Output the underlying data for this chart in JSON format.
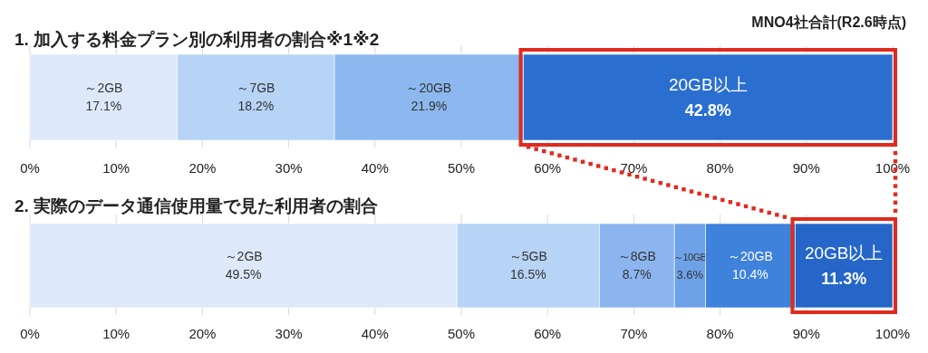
{
  "chart_data": [
    {
      "type": "bar",
      "orientation": "horizontal",
      "stacked": true,
      "title": "1. 加入する料金プラン別の利用者の割合※1※2",
      "annotations": [
        "MNO4社合計(R2.6時点)"
      ],
      "categories": [
        null
      ],
      "xlim": [
        0,
        100
      ],
      "xticks": [
        {
          "value": 0,
          "label": "0%"
        },
        {
          "value": 10,
          "label": "10%"
        },
        {
          "value": 20,
          "label": "20%"
        },
        {
          "value": 30,
          "label": "30%"
        },
        {
          "value": 40,
          "label": "40%"
        },
        {
          "value": 50,
          "label": "50%"
        },
        {
          "value": 60,
          "label": "60%"
        },
        {
          "value": 70,
          "label": "70%"
        },
        {
          "value": 80,
          "label": "80%"
        },
        {
          "value": 90,
          "label": "90%"
        },
        {
          "value": 100,
          "label": "100%"
        }
      ],
      "grid": "x",
      "series": [
        {
          "name": "～2GB",
          "color": "#dde9fb",
          "values": [
            17.1
          ],
          "value_labels": [
            "17.1%"
          ]
        },
        {
          "name": "～7GB",
          "color": "#b7d3f6",
          "values": [
            18.2
          ],
          "value_labels": [
            "18.2%"
          ]
        },
        {
          "name": "～20GB",
          "color": "#8cb8ef",
          "values": [
            21.9
          ],
          "value_labels": [
            "21.9%"
          ]
        },
        {
          "name": "20GB以上",
          "color": "#2a6fd0",
          "values": [
            42.8
          ],
          "value_labels": [
            "42.8%"
          ]
        }
      ]
    },
    {
      "type": "bar",
      "orientation": "horizontal",
      "stacked": true,
      "title": "2. 実際のデータ通信使用量で見た利用者の割合",
      "categories": [
        null
      ],
      "xlim": [
        0,
        100
      ],
      "xticks": [
        {
          "value": 0,
          "label": "0%"
        },
        {
          "value": 10,
          "label": "10%"
        },
        {
          "value": 20,
          "label": "20%"
        },
        {
          "value": 30,
          "label": "30%"
        },
        {
          "value": 40,
          "label": "40%"
        },
        {
          "value": 50,
          "label": "50%"
        },
        {
          "value": 60,
          "label": "60%"
        },
        {
          "value": 70,
          "label": "70%"
        },
        {
          "value": 80,
          "label": "80%"
        },
        {
          "value": 90,
          "label": "90%"
        },
        {
          "value": 100,
          "label": "100%"
        }
      ],
      "grid": "x",
      "series": [
        {
          "name": "～2GB",
          "color": "#dde9fb",
          "values": [
            49.5
          ],
          "value_labels": [
            "49.5%"
          ]
        },
        {
          "name": "～5GB",
          "color": "#b7d3f6",
          "values": [
            16.5
          ],
          "value_labels": [
            "16.5%"
          ]
        },
        {
          "name": "～8GB",
          "color": "#8cb5ef",
          "values": [
            8.7
          ],
          "value_labels": [
            "8.7%"
          ]
        },
        {
          "name": "～10GB",
          "color": "#6ea2e8",
          "values": [
            3.6
          ],
          "value_labels": [
            "3.6%"
          ]
        },
        {
          "name": "～20GB",
          "color": "#3f82dc",
          "values": [
            10.4
          ],
          "value_labels": [
            "10.4%"
          ]
        },
        {
          "name": "20GB以上",
          "color": "#2566c8",
          "values": [
            11.3
          ],
          "value_labels": [
            "11.3%"
          ]
        }
      ]
    }
  ]
}
